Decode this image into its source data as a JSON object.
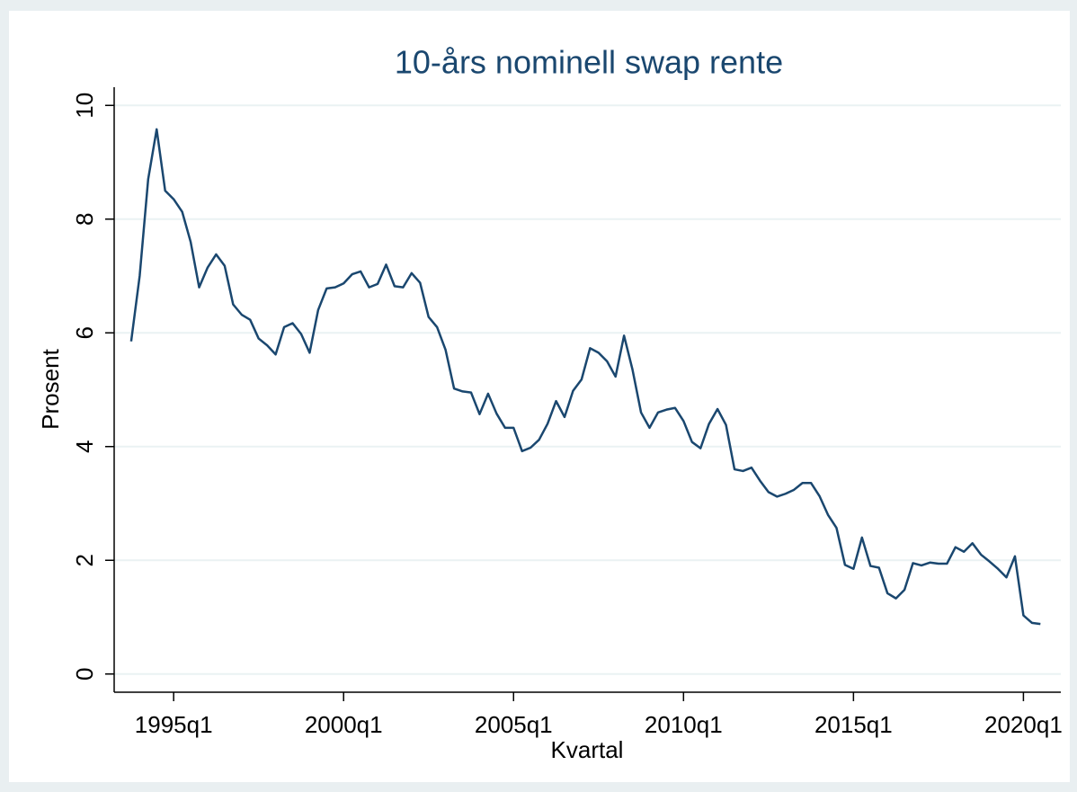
{
  "chart_data": {
    "type": "line",
    "title": "10-års nominell swap rente",
    "x_label": "Kvartal",
    "y_label": "Prosent",
    "x": [
      "1993q4",
      "1994q1",
      "1994q2",
      "1994q3",
      "1994q4",
      "1995q1",
      "1995q2",
      "1995q3",
      "1995q4",
      "1996q1",
      "1996q2",
      "1996q3",
      "1996q4",
      "1997q1",
      "1997q2",
      "1997q3",
      "1997q4",
      "1998q1",
      "1998q2",
      "1998q3",
      "1998q4",
      "1999q1",
      "1999q2",
      "1999q3",
      "1999q4",
      "2000q1",
      "2000q2",
      "2000q3",
      "2000q4",
      "2001q1",
      "2001q2",
      "2001q3",
      "2001q4",
      "2002q1",
      "2002q2",
      "2002q3",
      "2002q4",
      "2003q1",
      "2003q2",
      "2003q3",
      "2003q4",
      "2004q1",
      "2004q2",
      "2004q3",
      "2004q4",
      "2005q1",
      "2005q2",
      "2005q3",
      "2005q4",
      "2006q1",
      "2006q2",
      "2006q3",
      "2006q4",
      "2007q1",
      "2007q2",
      "2007q3",
      "2007q4",
      "2008q1",
      "2008q2",
      "2008q3",
      "2008q4",
      "2009q1",
      "2009q2",
      "2009q3",
      "2009q4",
      "2010q1",
      "2010q2",
      "2010q3",
      "2010q4",
      "2011q1",
      "2011q2",
      "2011q3",
      "2011q4",
      "2012q1",
      "2012q2",
      "2012q3",
      "2012q4",
      "2013q1",
      "2013q2",
      "2013q3",
      "2013q4",
      "2014q1",
      "2014q2",
      "2014q3",
      "2014q4",
      "2015q1",
      "2015q2",
      "2015q3",
      "2015q4",
      "2016q1",
      "2016q2",
      "2016q3",
      "2016q4",
      "2017q1",
      "2017q2",
      "2017q3",
      "2017q4",
      "2018q1",
      "2018q2",
      "2018q3",
      "2018q4",
      "2019q1",
      "2019q2",
      "2019q3",
      "2019q4",
      "2020q1",
      "2020q2",
      "2020q3"
    ],
    "series": [
      {
        "name": "10-års nominell swap rente",
        "color": "#1a476f",
        "values": [
          5.85,
          7.0,
          8.7,
          9.58,
          8.5,
          8.35,
          8.13,
          7.6,
          6.8,
          7.15,
          7.38,
          7.18,
          6.5,
          6.32,
          6.23,
          5.9,
          5.78,
          5.62,
          6.1,
          6.17,
          5.98,
          5.65,
          6.4,
          6.78,
          6.8,
          6.87,
          7.03,
          7.08,
          6.8,
          6.86,
          7.2,
          6.82,
          6.8,
          7.05,
          6.88,
          6.28,
          6.1,
          5.7,
          5.02,
          4.97,
          4.95,
          4.57,
          4.93,
          4.58,
          4.33,
          4.33,
          3.92,
          3.98,
          4.12,
          4.4,
          4.8,
          4.52,
          4.98,
          5.18,
          5.73,
          5.65,
          5.5,
          5.23,
          5.95,
          5.35,
          4.6,
          4.33,
          4.6,
          4.65,
          4.68,
          4.45,
          4.08,
          3.97,
          4.4,
          4.66,
          4.38,
          3.6,
          3.57,
          3.63,
          3.4,
          3.2,
          3.12,
          3.17,
          3.24,
          3.36,
          3.36,
          3.13,
          2.8,
          2.57,
          1.92,
          1.85,
          2.4,
          1.9,
          1.87,
          1.42,
          1.33,
          1.48,
          1.95,
          1.91,
          1.96,
          1.94,
          1.94,
          2.23,
          2.15,
          2.3,
          2.1,
          1.98,
          1.85,
          1.7,
          2.07,
          1.03,
          0.9,
          0.88
        ]
      }
    ],
    "xticks": [
      "1995q1",
      "2000q1",
      "2005q1",
      "2010q1",
      "2015q1",
      "2020q1"
    ],
    "ylim": [
      -0.32,
      10.32
    ],
    "yticks": [
      0,
      2,
      4,
      6,
      8,
      10
    ],
    "grid": true
  }
}
